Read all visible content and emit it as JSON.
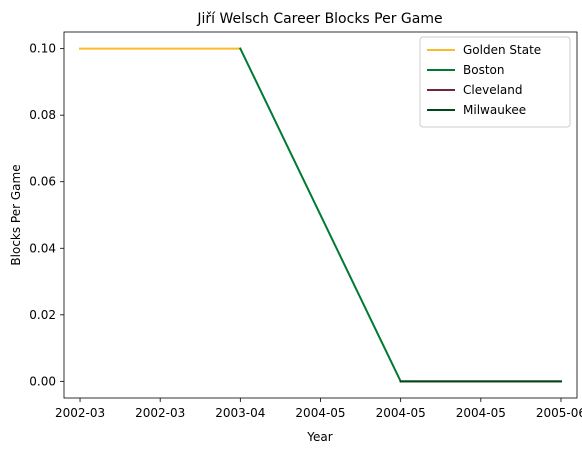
{
  "chart_data": {
    "type": "line",
    "title": "Jiří Welsch Career Blocks Per Game",
    "xlabel": "Year",
    "ylabel": "Blocks Per Game",
    "x_tick_labels": [
      "2002-03",
      "2002-03",
      "2003-04",
      "2004-05",
      "2004-05",
      "2004-05",
      "2005-06"
    ],
    "y_ticks": [
      0.0,
      0.02,
      0.04,
      0.06,
      0.08,
      0.1
    ],
    "y_tick_labels": [
      "0.00",
      "0.02",
      "0.04",
      "0.06",
      "0.08",
      "0.10"
    ],
    "x_range": [
      2001.9,
      2005.1
    ],
    "ylim": [
      -0.005,
      0.105
    ],
    "grid": false,
    "legend_position": "top-right",
    "series": [
      {
        "name": "Golden State",
        "color": "#fdb927",
        "points": [
          [
            2002,
            0.1
          ],
          [
            2003,
            0.1
          ]
        ]
      },
      {
        "name": "Boston",
        "color": "#007a33",
        "points": [
          [
            2003,
            0.1
          ],
          [
            2004,
            0.0
          ]
        ]
      },
      {
        "name": "Cleveland",
        "color": "#6f263d",
        "points": [
          [
            2004,
            0.0
          ],
          [
            2005,
            0.0
          ]
        ]
      },
      {
        "name": "Milwaukee",
        "color": "#00471b",
        "points": [
          [
            2004,
            0.0
          ],
          [
            2005,
            0.0
          ]
        ]
      }
    ]
  }
}
